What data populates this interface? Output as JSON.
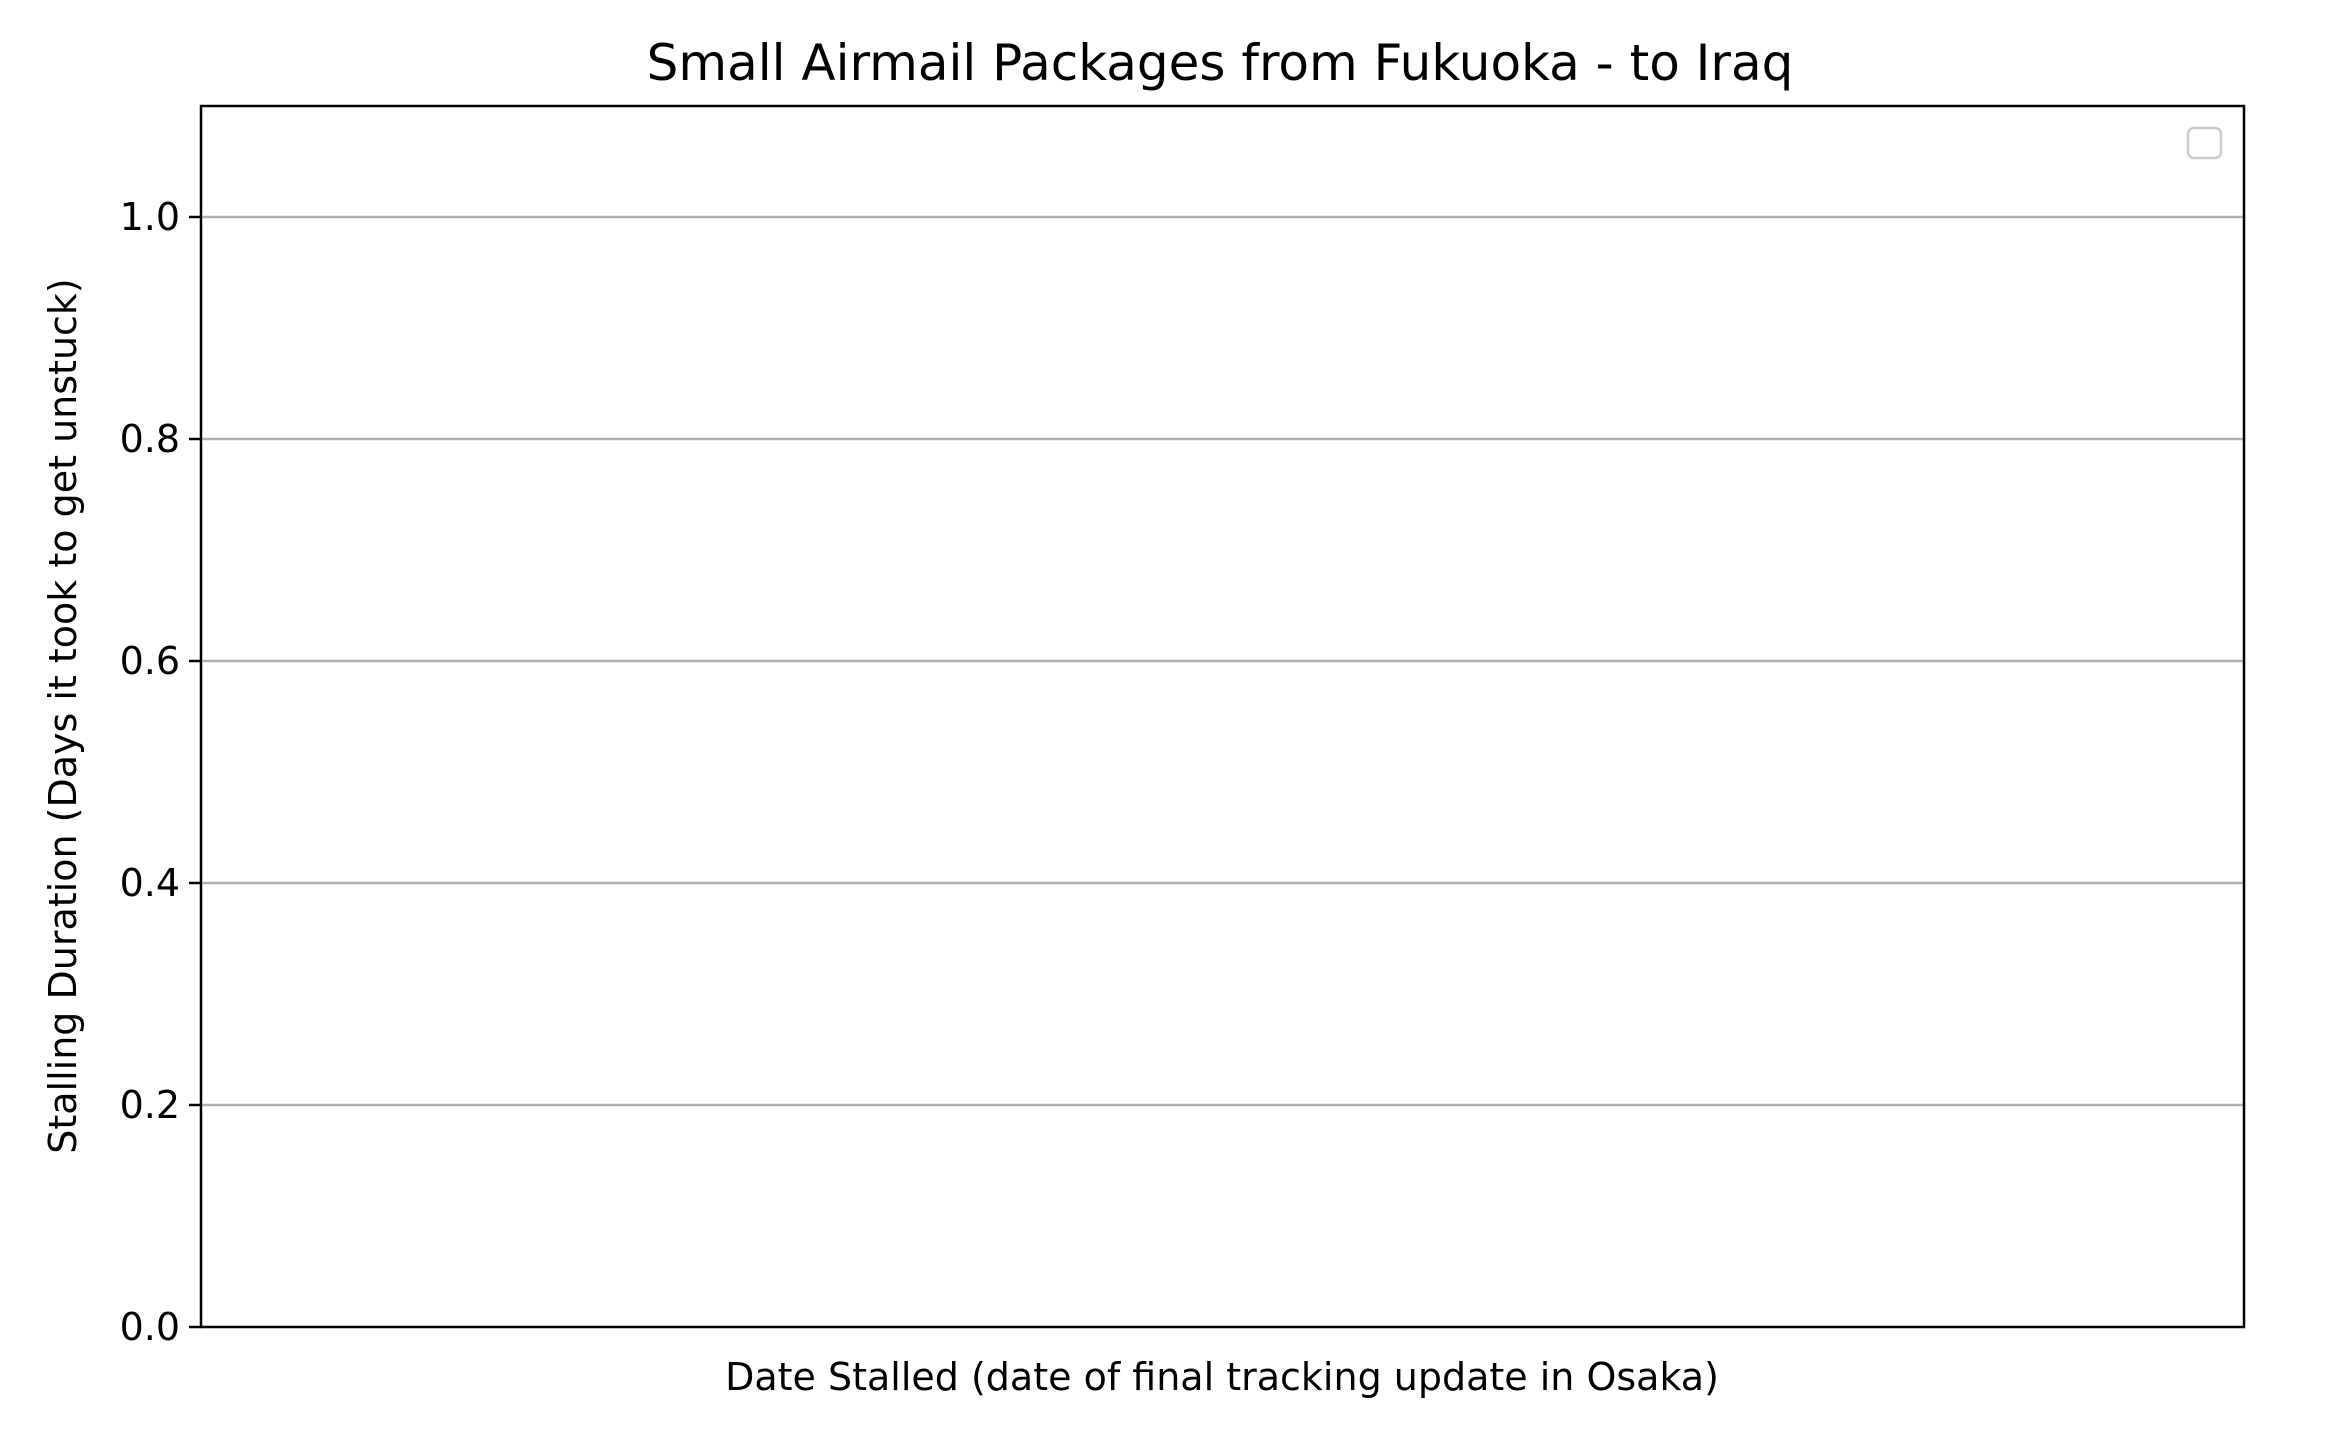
{
  "chart_data": {
    "type": "scatter",
    "title": "Small Airmail Packages from Fukuoka - to Iraq",
    "xlabel": "Date Stalled (date of final tracking update in Osaka)",
    "ylabel": "Stalling Duration (Days it took to get unstuck)",
    "ylim": [
      0.0,
      1.1
    ],
    "yticks": [
      0.0,
      0.2,
      0.4,
      0.6,
      0.8,
      1.0
    ],
    "ytick_labels": [
      "0.0",
      "0.2",
      "0.4",
      "0.6",
      "0.8",
      "1.0"
    ],
    "xticks": [],
    "series": [],
    "grid": "horizontal",
    "legend": {
      "visible": true,
      "placement": "upper right",
      "entries": []
    },
    "colors": {
      "gridline": "#b0b0b0",
      "axes": "#000000",
      "legend_border": "#cccccc"
    }
  }
}
